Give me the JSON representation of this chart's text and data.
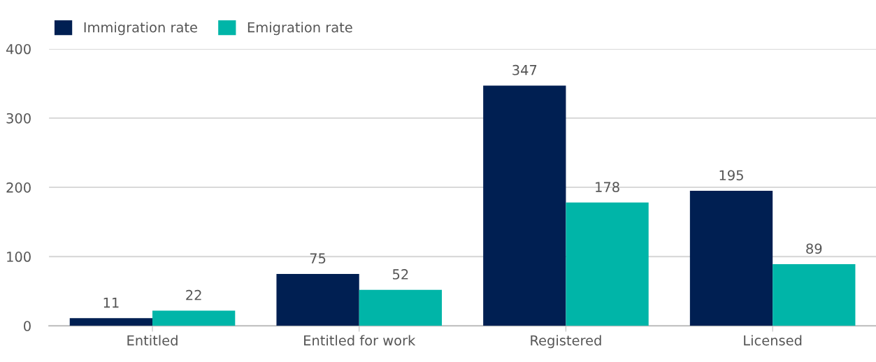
{
  "chart_data": {
    "type": "bar",
    "categories": [
      "Entitled",
      "Entitled for work",
      "Registered",
      "Licensed"
    ],
    "series": [
      {
        "name": "Immigration rate",
        "color": "#001f52",
        "values": [
          11,
          75,
          347,
          195
        ]
      },
      {
        "name": "Emigration rate",
        "color": "#00b5a8",
        "values": [
          22,
          52,
          178,
          89
        ]
      }
    ],
    "ylim": [
      0,
      400
    ],
    "yticks": [
      0,
      100,
      200,
      300,
      400
    ],
    "grid": "y",
    "legend": "top left",
    "data_labels": true
  }
}
